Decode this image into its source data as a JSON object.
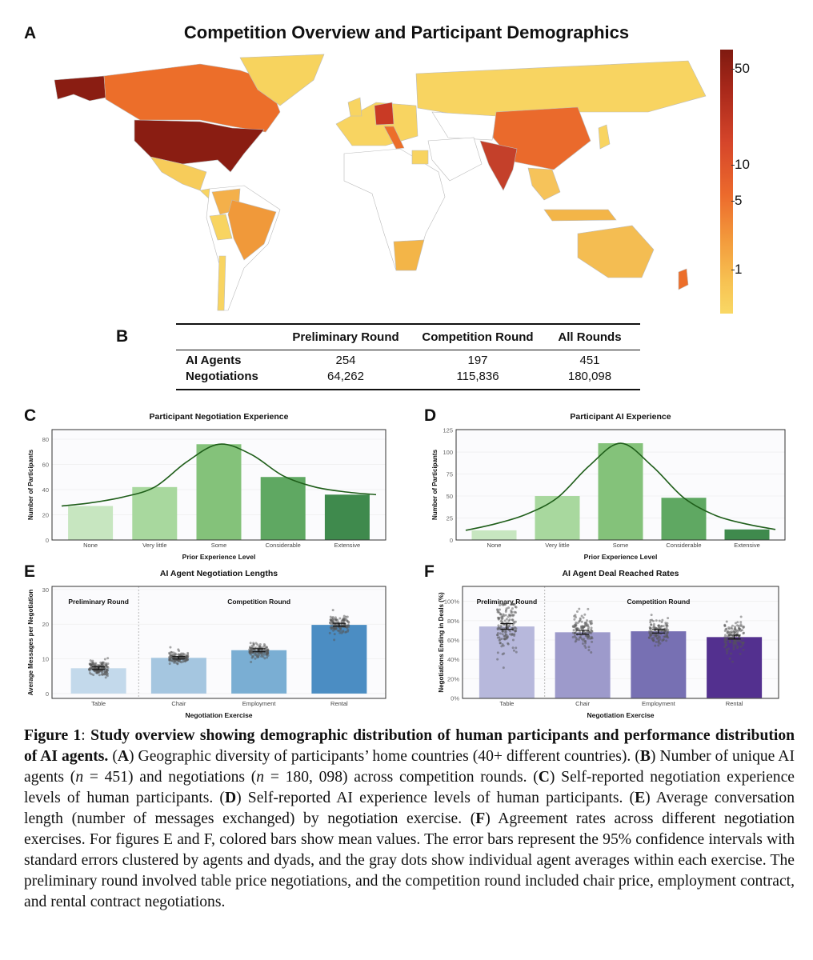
{
  "panel_a": {
    "label": "A",
    "title": "Competition Overview and Participant Demographics",
    "colorbar_ticks": [
      "50",
      "10",
      "5",
      "1"
    ],
    "colorscale": [
      "#7f1a10",
      "#d5452a",
      "#ec6a2c",
      "#f39a3c",
      "#f7c252",
      "#f9d865"
    ]
  },
  "panel_b": {
    "label": "B",
    "headers": [
      "",
      "Preliminary Round",
      "Competition Round",
      "All Rounds"
    ],
    "rows": [
      {
        "label": "AI Agents",
        "values": [
          "254",
          "197",
          "451"
        ]
      },
      {
        "label": "Negotiations",
        "values": [
          "64,262",
          "115,836",
          "180,098"
        ]
      }
    ]
  },
  "chart_data": [
    {
      "panel": "C",
      "type": "bar",
      "title": "Participant Negotiation Experience",
      "xlabel": "Prior Experience Level",
      "ylabel": "Number of Participants",
      "categories": [
        "None",
        "Very little",
        "Some",
        "Considerable",
        "Extensive"
      ],
      "values": [
        27,
        42,
        76,
        50,
        36
      ],
      "yticks": [
        0,
        20,
        40,
        60,
        80
      ],
      "ylim": [
        0,
        87.6
      ],
      "colors": [
        "#c7e6c0",
        "#a8d89e",
        "#84c27a",
        "#5fa862",
        "#3f8a4d"
      ],
      "fit_curve": {
        "x": [
          -0.45,
          0,
          0.5,
          1,
          1.5,
          2,
          2.5,
          3,
          3.5,
          4,
          4.45
        ],
        "y": [
          27,
          29.5,
          34,
          42,
          62,
          76,
          68,
          51,
          42,
          38,
          36
        ]
      }
    },
    {
      "panel": "D",
      "type": "bar",
      "title": "Participant AI Experience",
      "xlabel": "Prior Experience Level",
      "ylabel": "Number of Participants",
      "categories": [
        "None",
        "Very little",
        "Some",
        "Considerable",
        "Extensive"
      ],
      "values": [
        11,
        50,
        110,
        48,
        12
      ],
      "yticks": [
        0,
        25,
        50,
        75,
        100,
        125
      ],
      "ylim": [
        0,
        125.5
      ],
      "colors": [
        "#c7e6c0",
        "#a8d89e",
        "#84c27a",
        "#5fa862",
        "#3f8a4d"
      ],
      "fit_curve": {
        "x": [
          -0.45,
          0,
          0.5,
          1,
          1.5,
          2,
          2.5,
          3,
          3.5,
          4,
          4.45
        ],
        "y": [
          11,
          18,
          29,
          48,
          84,
          110,
          84,
          48,
          28,
          18,
          12
        ]
      }
    },
    {
      "panel": "E",
      "type": "bar",
      "title": "AI Agent Negotiation Lengths",
      "xlabel": "Negotiation Exercise",
      "ylabel": "Average Messages per Negotiation",
      "categories": [
        "Table",
        "Chair",
        "Employment",
        "Rental"
      ],
      "values": [
        7.3,
        10.3,
        12.5,
        19.8
      ],
      "ci_halfwidth": [
        0.4,
        0.35,
        0.45,
        0.45
      ],
      "agent_counts": [
        254,
        197,
        197,
        197
      ],
      "dot_spread_sd": [
        1.1,
        0.8,
        1.0,
        1.3
      ],
      "yticks": [
        0,
        10,
        20,
        30
      ],
      "ylim": [
        -1.4,
        30.9
      ],
      "colors": [
        "#c3d9eb",
        "#a5c6e0",
        "#7aaed3",
        "#4b8dc3"
      ],
      "groups": [
        {
          "label": "Preliminary Round",
          "categories": [
            "Table"
          ]
        },
        {
          "label": "Competition Round",
          "categories": [
            "Chair",
            "Employment",
            "Rental"
          ]
        }
      ]
    },
    {
      "panel": "F",
      "type": "bar",
      "title": "AI Agent Deal Reached Rates",
      "xlabel": "Negotiation Exercise",
      "ylabel": "Negotiations Ending in Deals (%)",
      "categories": [
        "Table",
        "Chair",
        "Employment",
        "Rental"
      ],
      "values": [
        74,
        68,
        69,
        63
      ],
      "ci_halfwidth": [
        3,
        2,
        1.8,
        2
      ],
      "agent_counts": [
        254,
        197,
        197,
        197
      ],
      "dot_spread_sd": [
        15,
        9,
        7,
        9
      ],
      "yticks": [
        0,
        20,
        40,
        60,
        80,
        100
      ],
      "ytick_suffix": "%",
      "ylim": [
        -0.5,
        115.5
      ],
      "colors": [
        "#b7b8dc",
        "#9d9acb",
        "#7770b3",
        "#53308f"
      ],
      "groups": [
        {
          "label": "Preliminary Round",
          "categories": [
            "Table"
          ]
        },
        {
          "label": "Competition Round",
          "categories": [
            "Chair",
            "Employment",
            "Rental"
          ]
        }
      ]
    }
  ],
  "panel_labels": [
    "C",
    "D",
    "E",
    "F"
  ],
  "caption": [
    {
      "t": "Figure 1",
      "s": "b"
    },
    {
      "t": ": ",
      "s": ""
    },
    {
      "t": "Study overview showing demographic distribution of human participants and performance distribution of AI agents.",
      "s": "b"
    },
    {
      "t": " (",
      "s": ""
    },
    {
      "t": "A",
      "s": "b"
    },
    {
      "t": ") Geographic diversity of participants’ home countries (40+ different countries). (",
      "s": ""
    },
    {
      "t": "B",
      "s": "b"
    },
    {
      "t": ") Number of unique AI agents (",
      "s": ""
    },
    {
      "t": "n",
      "s": "i"
    },
    {
      "t": " = 451) and negotiations (",
      "s": ""
    },
    {
      "t": "n",
      "s": "i"
    },
    {
      "t": " = 180, 098) across competition rounds. (",
      "s": ""
    },
    {
      "t": "C",
      "s": "b"
    },
    {
      "t": ") Self-reported negotiation experience levels of human participants. (",
      "s": ""
    },
    {
      "t": "D",
      "s": "b"
    },
    {
      "t": ") Self-reported AI experience levels of human participants. (",
      "s": ""
    },
    {
      "t": "E",
      "s": "b"
    },
    {
      "t": ") Average conversation length (number of messages exchanged) by negotiation exercise. (",
      "s": ""
    },
    {
      "t": "F",
      "s": "b"
    },
    {
      "t": ") Agreement rates across different negotiation exercises. For figures E and F, colored bars show mean values. The error bars represent the 95% confidence intervals with standard errors clustered by agents and dyads, and the gray dots show individual agent averages within each exercise. The preliminary round involved table price negotiations, and the competition round included chair price, employment contract, and rental contract negotiations.",
      "s": ""
    }
  ]
}
